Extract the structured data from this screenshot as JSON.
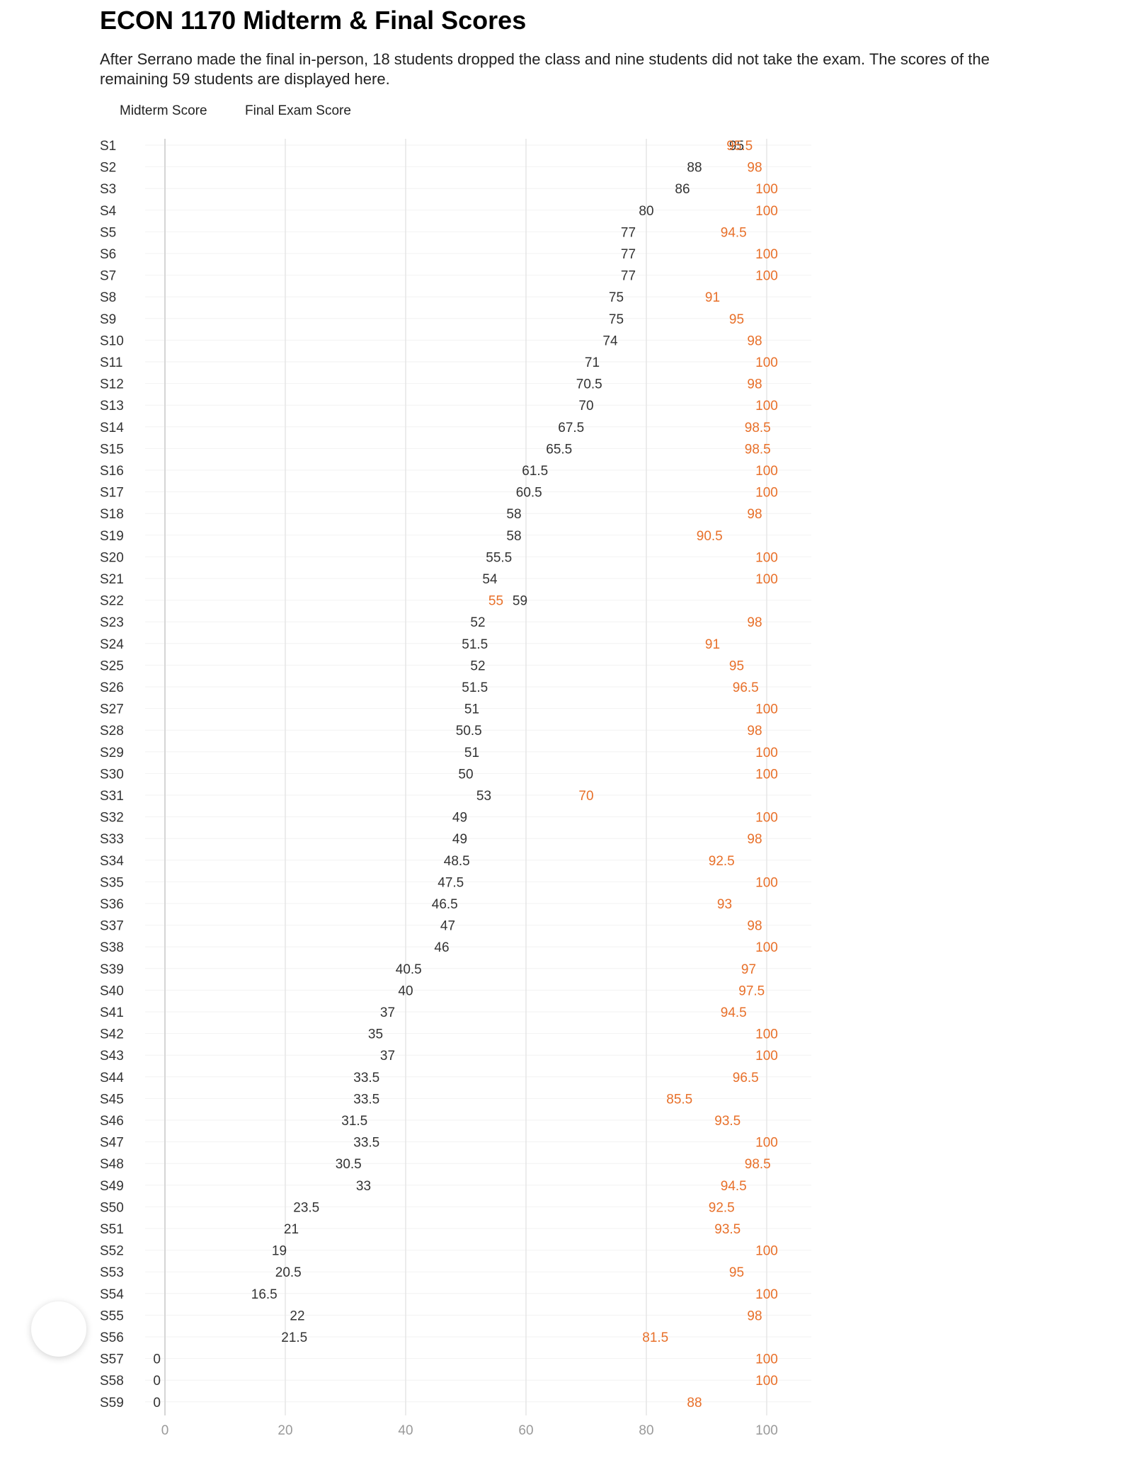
{
  "title": "ECON 1170 Midterm & Final Scores",
  "subtitle": "After Serrano made the final in-person, 18 students dropped the class and nine students did not take the exam. The scores of the remaining 59 students are displayed here.",
  "legend": {
    "midterm": "Midterm Score",
    "final": "Final Exam Score"
  },
  "colors": {
    "midterm": "#333333",
    "final": "#e8702a",
    "grid": "#e6e6e6",
    "axis": "#d5d5d5",
    "tick": "#9a9a9a"
  },
  "chart_data": {
    "type": "scatter",
    "title": "ECON 1170 Midterm & Final Scores",
    "xlabel": "",
    "ylabel": "",
    "xlim": [
      0,
      100
    ],
    "xticks": [
      0,
      20,
      40,
      60,
      80,
      100
    ],
    "grid": true,
    "legend_position": "top-left",
    "categories": [
      "S1",
      "S2",
      "S3",
      "S4",
      "S5",
      "S6",
      "S7",
      "S8",
      "S9",
      "S10",
      "S11",
      "S12",
      "S13",
      "S14",
      "S15",
      "S16",
      "S17",
      "S18",
      "S19",
      "S20",
      "S21",
      "S22",
      "S23",
      "S24",
      "S25",
      "S26",
      "S27",
      "S28",
      "S29",
      "S30",
      "S31",
      "S32",
      "S33",
      "S34",
      "S35",
      "S36",
      "S37",
      "S38",
      "S39",
      "S40",
      "S41",
      "S42",
      "S43",
      "S44",
      "S45",
      "S46",
      "S47",
      "S48",
      "S49",
      "S50",
      "S51",
      "S52",
      "S53",
      "S54",
      "S55",
      "S56",
      "S57",
      "S58",
      "S59"
    ],
    "series": [
      {
        "name": "Midterm Score",
        "values": [
          95,
          88,
          86,
          80,
          77,
          77,
          77,
          75,
          75,
          74,
          71,
          70.5,
          70,
          67.5,
          65.5,
          61.5,
          60.5,
          58,
          58,
          55.5,
          54,
          59,
          52,
          51.5,
          52,
          51.5,
          51,
          50.5,
          51,
          50,
          53,
          49,
          49,
          48.5,
          47.5,
          46.5,
          47,
          46,
          40.5,
          40,
          37,
          35,
          37,
          33.5,
          33.5,
          31.5,
          33.5,
          30.5,
          33,
          23.5,
          21,
          19,
          20.5,
          16.5,
          22,
          21.5,
          0,
          0,
          0
        ]
      },
      {
        "name": "Final Exam Score",
        "values": [
          95.5,
          98,
          100,
          100,
          94.5,
          100,
          100,
          91,
          95,
          98,
          100,
          98,
          100,
          98.5,
          98.5,
          100,
          100,
          98,
          90.5,
          100,
          100,
          55,
          98,
          91,
          95,
          96.5,
          100,
          98,
          100,
          100,
          70,
          100,
          98,
          92.5,
          100,
          93,
          98,
          100,
          97,
          97.5,
          94.5,
          100,
          100,
          96.5,
          85.5,
          93.5,
          100,
          98.5,
          94.5,
          92.5,
          93.5,
          100,
          95,
          100,
          98,
          81.5,
          100,
          100,
          88
        ]
      }
    ]
  }
}
